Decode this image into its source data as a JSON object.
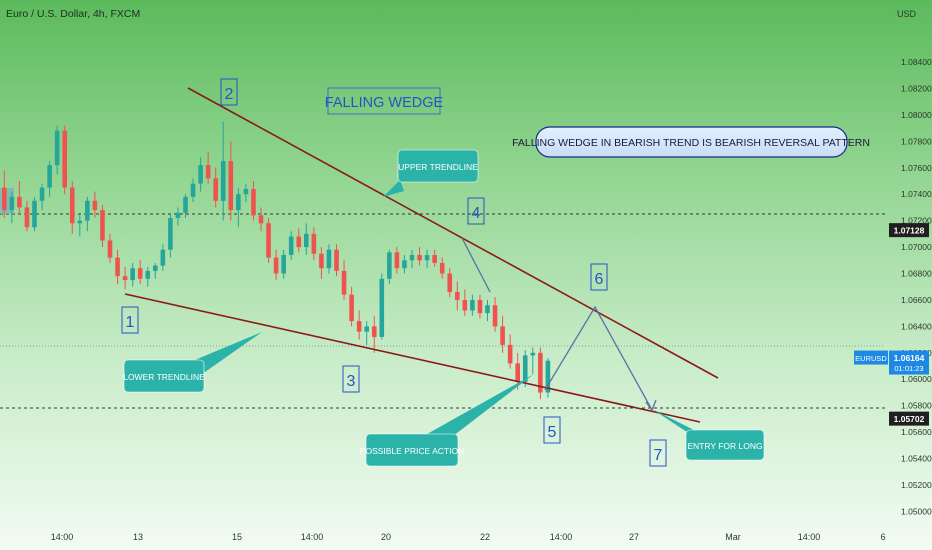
{
  "header": {
    "title": "Euro / U.S. Dollar, 4h, FXCM",
    "currency": "USD"
  },
  "chart_data": {
    "type": "candlestick",
    "x_ticks": [
      "14:00",
      "13",
      "15",
      "14:00",
      "20",
      "22",
      "14:00",
      "27",
      "Mar",
      "14:00",
      "6"
    ],
    "y_ticks": [
      "1.08400",
      "1.08200",
      "1.08000",
      "1.07800",
      "1.07600",
      "1.07400",
      "1.07200",
      "1.07000",
      "1.06800",
      "1.06600",
      "1.06400",
      "1.06200",
      "1.06000",
      "1.05800",
      "1.05600",
      "1.05400",
      "1.05200",
      "1.05000"
    ],
    "ylim": [
      1.0492,
      1.0868
    ],
    "candles": [
      [
        1.0745,
        1.0758,
        1.0722,
        1.0728
      ],
      [
        1.0728,
        1.0742,
        1.0718,
        1.0738
      ],
      [
        1.0738,
        1.075,
        1.0725,
        1.073
      ],
      [
        1.073,
        1.0735,
        1.0712,
        1.0715
      ],
      [
        1.0715,
        1.0738,
        1.0712,
        1.0735
      ],
      [
        1.0735,
        1.0748,
        1.0728,
        1.0745
      ],
      [
        1.0745,
        1.0765,
        1.0738,
        1.0762
      ],
      [
        1.0762,
        1.0792,
        1.0755,
        1.0788
      ],
      [
        1.0788,
        1.0792,
        1.074,
        1.0745
      ],
      [
        1.0745,
        1.075,
        1.071,
        1.0718
      ],
      [
        1.0718,
        1.0725,
        1.0708,
        1.072
      ],
      [
        1.072,
        1.0738,
        1.0712,
        1.0735
      ],
      [
        1.0735,
        1.0742,
        1.0722,
        1.0728
      ],
      [
        1.0728,
        1.0732,
        1.07,
        1.0705
      ],
      [
        1.0705,
        1.071,
        1.0688,
        1.0692
      ],
      [
        1.0692,
        1.0698,
        1.0672,
        1.0678
      ],
      [
        1.0678,
        1.0685,
        1.0668,
        1.0675
      ],
      [
        1.0675,
        1.0688,
        1.067,
        1.0684
      ],
      [
        1.0684,
        1.069,
        1.0672,
        1.0676
      ],
      [
        1.0676,
        1.0685,
        1.067,
        1.0682
      ],
      [
        1.0682,
        1.0688,
        1.0676,
        1.0686
      ],
      [
        1.0686,
        1.0702,
        1.0682,
        1.0698
      ],
      [
        1.0698,
        1.0725,
        1.0692,
        1.0722
      ],
      [
        1.0722,
        1.073,
        1.0716,
        1.0726
      ],
      [
        1.0726,
        1.074,
        1.0722,
        1.0738
      ],
      [
        1.0738,
        1.0752,
        1.0734,
        1.0748
      ],
      [
        1.0748,
        1.0768,
        1.0742,
        1.0762
      ],
      [
        1.0762,
        1.0772,
        1.0748,
        1.0752
      ],
      [
        1.0752,
        1.076,
        1.073,
        1.0735
      ],
      [
        1.0735,
        1.0795,
        1.072,
        1.0765
      ],
      [
        1.0765,
        1.078,
        1.072,
        1.0728
      ],
      [
        1.0728,
        1.0745,
        1.0715,
        1.074
      ],
      [
        1.074,
        1.0748,
        1.0734,
        1.0744
      ],
      [
        1.0744,
        1.075,
        1.072,
        1.0724
      ],
      [
        1.0724,
        1.073,
        1.0712,
        1.0718
      ],
      [
        1.0718,
        1.0722,
        1.0688,
        1.0692
      ],
      [
        1.0692,
        1.0698,
        1.0675,
        1.068
      ],
      [
        1.068,
        1.0698,
        1.0676,
        1.0694
      ],
      [
        1.0694,
        1.0712,
        1.069,
        1.0708
      ],
      [
        1.0708,
        1.0714,
        1.0696,
        1.07
      ],
      [
        1.07,
        1.0718,
        1.0694,
        1.071
      ],
      [
        1.071,
        1.0715,
        1.069,
        1.0695
      ],
      [
        1.0695,
        1.07,
        1.0676,
        1.0684
      ],
      [
        1.0684,
        1.0702,
        1.068,
        1.0698
      ],
      [
        1.0698,
        1.0702,
        1.0678,
        1.0682
      ],
      [
        1.0682,
        1.069,
        1.066,
        1.0664
      ],
      [
        1.0664,
        1.067,
        1.064,
        1.0644
      ],
      [
        1.0644,
        1.0652,
        1.063,
        1.0636
      ],
      [
        1.0636,
        1.0644,
        1.0626,
        1.064
      ],
      [
        1.064,
        1.0648,
        1.062,
        1.0632
      ],
      [
        1.0632,
        1.068,
        1.063,
        1.0676
      ],
      [
        1.0676,
        1.0698,
        1.0672,
        1.0696
      ],
      [
        1.0696,
        1.07,
        1.068,
        1.0684
      ],
      [
        1.0684,
        1.0694,
        1.068,
        1.069
      ],
      [
        1.069,
        1.0698,
        1.0684,
        1.0694
      ],
      [
        1.0694,
        1.07,
        1.0686,
        1.069
      ],
      [
        1.069,
        1.0698,
        1.0684,
        1.0694
      ],
      [
        1.0694,
        1.0698,
        1.0685,
        1.0688
      ],
      [
        1.0688,
        1.0692,
        1.0676,
        1.068
      ],
      [
        1.068,
        1.0684,
        1.0662,
        1.0666
      ],
      [
        1.0666,
        1.0674,
        1.0652,
        1.066
      ],
      [
        1.066,
        1.0668,
        1.0648,
        1.0652
      ],
      [
        1.0652,
        1.0664,
        1.0648,
        1.066
      ],
      [
        1.066,
        1.0664,
        1.0646,
        1.065
      ],
      [
        1.065,
        1.066,
        1.0644,
        1.0656
      ],
      [
        1.0656,
        1.0662,
        1.0636,
        1.064
      ],
      [
        1.064,
        1.0648,
        1.062,
        1.0626
      ],
      [
        1.0626,
        1.0634,
        1.0608,
        1.0612
      ],
      [
        1.0612,
        1.062,
        1.0592,
        1.0598
      ],
      [
        1.0598,
        1.0622,
        1.0594,
        1.0618
      ],
      [
        1.0618,
        1.0624,
        1.0604,
        1.062
      ],
      [
        1.062,
        1.0624,
        1.0585,
        1.059
      ],
      [
        1.059,
        1.0616,
        1.0586,
        1.0614
      ]
    ],
    "price_labels": [
      {
        "text": "1.07128",
        "value": 1.07128,
        "style": "dark"
      },
      {
        "text": "1.06164",
        "value": 1.06164,
        "style": "blue",
        "symbol": "EURUSD",
        "timer": "01:01:23"
      },
      {
        "text": "1.05702",
        "value": 1.05702,
        "style": "dark"
      }
    ],
    "wedge_title": "FALLING WEDGE",
    "description": "FALLING WEDGE IN BEARISH TREND IS BEARISH REVERSAL PATTERN",
    "callouts": {
      "upper": "UPPER TRENDLINE",
      "lower": "LOWER TRENDLINE",
      "price_action": "POSSIBLE PRICE ACTION",
      "entry": "ENTRY FOR LONG"
    },
    "point_labels": [
      "1",
      "2",
      "3",
      "4",
      "5",
      "6",
      "7"
    ],
    "colors": {
      "bull": "#26a69a",
      "bear": "#ef5350",
      "trendline": "#8b1a1a",
      "path": "#5b6fa8",
      "callout": "#2bb3aa",
      "numbers": "#2554c7"
    }
  }
}
